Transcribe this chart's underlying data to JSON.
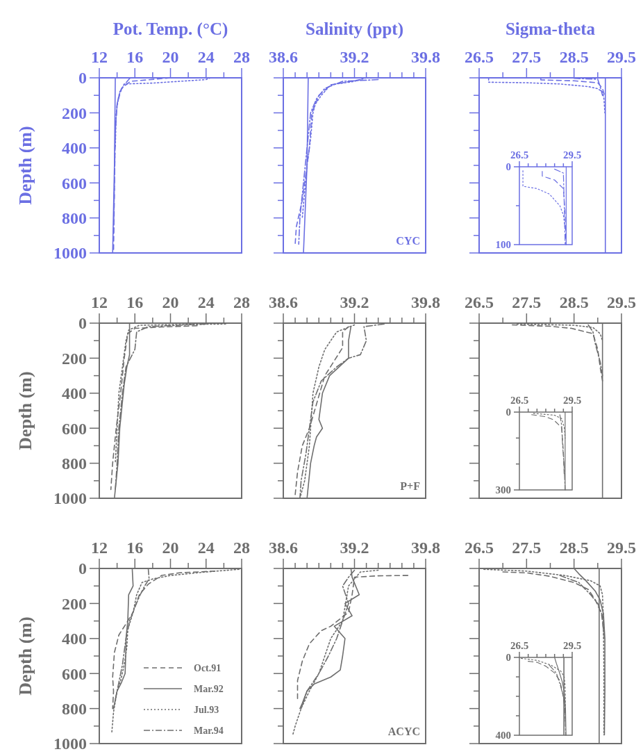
{
  "chart_data": [
    {
      "type": "line",
      "title": "Pot. Temp. (°C)",
      "ylabel": "Depth (m)",
      "xlim": [
        12,
        28
      ],
      "ylim": [
        1000,
        0
      ],
      "xticks": [
        12,
        {
          "value": 14,
          "label": null
        },
        16,
        {
          "value": 18,
          "label": null
        },
        20,
        {
          "value": 22,
          "label": null
        },
        24,
        {
          "value": 26,
          "label": null
        },
        28
      ],
      "yticks": [
        0,
        {
          "value": 100,
          "label": null
        },
        200,
        {
          "value": 300,
          "label": null
        },
        400,
        {
          "value": 500,
          "label": null
        },
        600,
        {
          "value": 700,
          "label": null
        },
        800,
        {
          "value": 900,
          "label": null
        },
        1000
      ],
      "series": [
        {
          "color": "#6b6fe3",
          "line_style": "dashed",
          "x": [
            20.0,
            15.5,
            14.5,
            14.0,
            13.8,
            13.6
          ],
          "values": [
            0,
            20,
            60,
            150,
            300,
            1000
          ]
        },
        {
          "color": "#6b6fe3",
          "line_style": "solid",
          "x": [
            13.8,
            13.7,
            13.5
          ],
          "values": [
            0,
            500,
            1000
          ]
        },
        {
          "color": "#6b6fe3",
          "line_style": "dotted",
          "x": [
            24.5,
            24.0,
            18.0,
            14.8,
            14.2,
            13.9,
            13.8
          ],
          "values": [
            0,
            10,
            30,
            35,
            100,
            200,
            400
          ]
        },
        {
          "color": "#6b6fe3",
          "line_style": "dashdot",
          "x": [
            15.5,
            15.3,
            14.8,
            14.3,
            14.0,
            13.8,
            13.6
          ],
          "values": [
            0,
            10,
            40,
            80,
            150,
            300,
            900
          ]
        }
      ]
    },
    {
      "type": "line",
      "title": "Salinity (ppt)",
      "tick_labels": "x",
      "xlim": [
        38.6,
        39.8
      ],
      "ylim": [
        1000,
        0
      ],
      "xticks": [
        38.6,
        {
          "value": 38.7,
          "label": null
        },
        {
          "value": 38.8,
          "label": null
        },
        {
          "value": 38.9,
          "label": null
        },
        {
          "value": 39.0,
          "label": null
        },
        {
          "value": 39.1,
          "label": null
        },
        39.2,
        {
          "value": 39.3,
          "label": null
        },
        {
          "value": 39.4,
          "label": null
        },
        {
          "value": 39.5,
          "label": null
        },
        {
          "value": 39.6,
          "label": null
        },
        {
          "value": 39.7,
          "label": null
        },
        39.8
      ],
      "yticks": [
        {
          "value": 0,
          "label": null
        },
        {
          "value": 100,
          "label": null
        },
        {
          "value": 200,
          "label": null
        },
        {
          "value": 300,
          "label": null
        },
        {
          "value": 400,
          "label": null
        },
        {
          "value": 500,
          "label": null
        },
        {
          "value": 600,
          "label": null
        },
        {
          "value": 700,
          "label": null
        },
        {
          "value": 800,
          "label": null
        },
        {
          "value": 900,
          "label": null
        },
        {
          "value": 1000,
          "label": null
        }
      ],
      "annotations": [
        "CYC"
      ],
      "series": [
        {
          "color": "#6b6fe3",
          "line_style": "dashed",
          "x": [
            39.25,
            39.0,
            38.9,
            38.84,
            38.82,
            38.76,
            38.71,
            38.7
          ],
          "values": [
            10,
            40,
            100,
            200,
            400,
            700,
            850,
            950
          ]
        },
        {
          "color": "#6b6fe3",
          "line_style": "solid",
          "x": [
            38.81,
            38.8,
            38.77
          ],
          "values": [
            0,
            500,
            1000
          ]
        },
        {
          "color": "#6b6fe3",
          "line_style": "dotted",
          "x": [
            39.3,
            39.2,
            39.0,
            38.92,
            38.87,
            38.85,
            38.83,
            38.8,
            38.76
          ],
          "values": [
            0,
            20,
            40,
            100,
            150,
            200,
            350,
            500,
            800
          ]
        },
        {
          "color": "#6b6fe3",
          "line_style": "dashdot",
          "x": [
            39.4,
            39.1,
            38.95,
            38.88,
            38.83,
            38.8,
            38.74,
            38.73
          ],
          "values": [
            10,
            20,
            60,
            120,
            200,
            400,
            800,
            950
          ]
        }
      ]
    },
    {
      "type": "line",
      "title": "Sigma-theta",
      "tick_labels": "x",
      "xlim": [
        26.5,
        29.5
      ],
      "ylim": [
        1000,
        0
      ],
      "xticks": [
        26.5,
        {
          "value": 27,
          "label": null
        },
        27.5,
        {
          "value": 28,
          "label": null
        },
        28.5,
        {
          "value": 29,
          "label": null
        },
        29.5
      ],
      "yticks": [
        {
          "value": 0,
          "label": null
        },
        {
          "value": 100,
          "label": null
        },
        {
          "value": 200,
          "label": null
        },
        {
          "value": 300,
          "label": null
        },
        {
          "value": 400,
          "label": null
        },
        {
          "value": 500,
          "label": null
        },
        {
          "value": 600,
          "label": null
        },
        {
          "value": 700,
          "label": null
        },
        {
          "value": 800,
          "label": null
        },
        {
          "value": 900,
          "label": null
        },
        {
          "value": 1000,
          "label": null
        }
      ],
      "series": [
        {
          "color": "#6b6fe3",
          "line_style": "dashed",
          "x": [
            27.8,
            27.8,
            28.5,
            29.0,
            29.1,
            29.14
          ],
          "values": [
            6,
            12,
            17,
            28,
            60,
            100
          ]
        },
        {
          "color": "#6b6fe3",
          "line_style": "solid",
          "x": [
            29.16,
            29.16
          ],
          "values": [
            0,
            1000
          ]
        },
        {
          "color": "#6b6fe3",
          "line_style": "dotted",
          "x": [
            26.7,
            26.7,
            27.5,
            28.2,
            28.8,
            29.0,
            29.1,
            29.13,
            29.15
          ],
          "values": [
            5,
            25,
            28,
            35,
            50,
            62,
            80,
            120,
            200
          ]
        },
        {
          "color": "#6b6fe3",
          "line_style": "dashdot",
          "x": [
            28.5,
            29.0,
            29.05,
            29.1
          ],
          "values": [
            3,
            8,
            50,
            100
          ]
        }
      ]
    },
    {
      "type": "line",
      "xlim": [
        26.5,
        29.5
      ],
      "ylim": [
        100,
        0
      ],
      "xticks": [
        26.5,
        {
          "value": 27,
          "label": null
        },
        {
          "value": 27.5,
          "label": null
        },
        {
          "value": 28,
          "label": null
        },
        {
          "value": 28.5,
          "label": null
        },
        {
          "value": 29,
          "label": null
        },
        29.5
      ],
      "yticks": [
        0,
        {
          "value": 50,
          "label": null
        },
        100
      ],
      "series": [
        {
          "color": "#6b6fe3",
          "line_style": "dashed",
          "x": [
            27.8,
            27.8,
            28.5,
            29.0,
            29.1,
            29.14
          ],
          "values": [
            6,
            12,
            17,
            28,
            60,
            100
          ]
        },
        {
          "color": "#6b6fe3",
          "line_style": "solid",
          "x": [
            29.16,
            29.16
          ],
          "values": [
            0,
            100
          ]
        },
        {
          "color": "#6b6fe3",
          "line_style": "dotted",
          "x": [
            26.7,
            26.7,
            27.5,
            28.2,
            28.8,
            29.0,
            29.1
          ],
          "values": [
            5,
            25,
            28,
            35,
            50,
            62,
            80
          ]
        },
        {
          "color": "#6b6fe3",
          "line_style": "dashdot",
          "x": [
            28.5,
            29.0,
            29.05,
            29.1
          ],
          "values": [
            3,
            8,
            50,
            100
          ]
        }
      ]
    },
    {
      "type": "line",
      "ylabel": "Depth (m)",
      "xlim": [
        12,
        28
      ],
      "ylim": [
        1000,
        0
      ],
      "xticks": [
        12,
        {
          "value": 14,
          "label": null
        },
        16,
        {
          "value": 18,
          "label": null
        },
        20,
        {
          "value": 22,
          "label": null
        },
        24,
        {
          "value": 26,
          "label": null
        },
        28
      ],
      "yticks": [
        0,
        {
          "value": 100,
          "label": null
        },
        200,
        {
          "value": 300,
          "label": null
        },
        400,
        {
          "value": 500,
          "label": null
        },
        600,
        {
          "value": 700,
          "label": null
        },
        800,
        {
          "value": 900,
          "label": null
        },
        1000
      ],
      "series": [
        {
          "color": "#6e6e6e",
          "line_style": "dashed",
          "x": [
            23,
            19,
            16,
            15.2,
            14.8,
            14.4,
            13.9,
            13.5,
            13.3
          ],
          "values": [
            15,
            22,
            30,
            60,
            200,
            400,
            600,
            800,
            950
          ]
        },
        {
          "color": "#6e6e6e",
          "line_style": "solid",
          "x": [
            15.4,
            15.4,
            15.1,
            14.8,
            14.5,
            14.3,
            14.1,
            13.7
          ],
          "values": [
            0,
            180,
            250,
            350,
            500,
            600,
            800,
            1000
          ]
        },
        {
          "color": "#6e6e6e",
          "line_style": "dotted",
          "x": [
            26.2,
            21,
            16.5,
            15.3,
            15.0,
            14.6,
            14.2,
            14.0,
            13.8
          ],
          "values": [
            5,
            8,
            12,
            40,
            100,
            250,
            400,
            600,
            800
          ]
        },
        {
          "color": "#6e6e6e",
          "line_style": "dashdot",
          "x": [
            24,
            17.5,
            16.2,
            16.0,
            15.5,
            15.0,
            14.6,
            14.2,
            14.0,
            13.8
          ],
          "values": [
            5,
            20,
            50,
            150,
            200,
            250,
            400,
            600,
            800,
            950
          ]
        }
      ]
    },
    {
      "type": "line",
      "tick_labels": "x",
      "xlim": [
        38.6,
        39.8
      ],
      "ylim": [
        1000,
        0
      ],
      "xticks": [
        38.6,
        {
          "value": 38.7,
          "label": null
        },
        {
          "value": 38.8,
          "label": null
        },
        {
          "value": 38.9,
          "label": null
        },
        {
          "value": 39.0,
          "label": null
        },
        {
          "value": 39.1,
          "label": null
        },
        39.2,
        {
          "value": 39.3,
          "label": null
        },
        {
          "value": 39.4,
          "label": null
        },
        {
          "value": 39.5,
          "label": null
        },
        {
          "value": 39.6,
          "label": null
        },
        {
          "value": 39.7,
          "label": null
        },
        39.8
      ],
      "yticks": [
        {
          "value": 0,
          "label": null
        },
        {
          "value": 100,
          "label": null
        },
        {
          "value": 200,
          "label": null
        },
        {
          "value": 300,
          "label": null
        },
        {
          "value": 400,
          "label": null
        },
        {
          "value": 500,
          "label": null
        },
        {
          "value": 600,
          "label": null
        },
        {
          "value": 700,
          "label": null
        },
        {
          "value": 800,
          "label": null
        },
        {
          "value": 900,
          "label": null
        },
        {
          "value": 1000,
          "label": null
        }
      ],
      "annotations": [
        "P+F"
      ],
      "series": [
        {
          "color": "#6e6e6e",
          "line_style": "dashed",
          "x": [
            39.15,
            39.1,
            39.1,
            38.95,
            38.82,
            38.76,
            38.72,
            38.7
          ],
          "values": [
            20,
            50,
            140,
            300,
            600,
            700,
            850,
            980
          ]
        },
        {
          "color": "#6e6e6e",
          "line_style": "solid",
          "x": [
            39.17,
            39.15,
            39.15,
            38.99,
            38.93,
            38.91,
            38.9,
            38.93,
            38.88,
            38.86,
            38.83,
            38.8
          ],
          "values": [
            20,
            100,
            200,
            300,
            400,
            500,
            550,
            600,
            650,
            700,
            800,
            1000
          ]
        },
        {
          "color": "#6e6e6e",
          "line_style": "dotted",
          "x": [
            39.2,
            39.05,
            38.95,
            38.9,
            38.85,
            38.82,
            38.78,
            38.74
          ],
          "values": [
            10,
            50,
            150,
            250,
            400,
            700,
            900,
            1000
          ]
        },
        {
          "color": "#6e6e6e",
          "line_style": "dashdot",
          "x": [
            39.45,
            39.28,
            39.3,
            39.25,
            39.15,
            39.05,
            38.92,
            38.85,
            38.82,
            38.79,
            38.75,
            38.74
          ],
          "values": [
            5,
            20,
            100,
            180,
            200,
            250,
            330,
            450,
            600,
            750,
            900,
            1000
          ]
        }
      ]
    },
    {
      "type": "line",
      "tick_labels": "x",
      "xlim": [
        26.5,
        29.5
      ],
      "ylim": [
        1000,
        0
      ],
      "xticks": [
        26.5,
        {
          "value": 27,
          "label": null
        },
        27.5,
        {
          "value": 28,
          "label": null
        },
        28.5,
        {
          "value": 29,
          "label": null
        },
        29.5
      ],
      "yticks": [
        {
          "value": 0,
          "label": null
        },
        {
          "value": 100,
          "label": null
        },
        {
          "value": 200,
          "label": null
        },
        {
          "value": 300,
          "label": null
        },
        {
          "value": 400,
          "label": null
        },
        {
          "value": 500,
          "label": null
        },
        {
          "value": 600,
          "label": null
        },
        {
          "value": 700,
          "label": null
        },
        {
          "value": 800,
          "label": null
        },
        {
          "value": 900,
          "label": null
        },
        {
          "value": 1000,
          "label": null
        }
      ],
      "series": [
        {
          "color": "#6e6e6e",
          "line_style": "dashed",
          "x": [
            27.2,
            28.0,
            28.45,
            28.9,
            29.0,
            29.05,
            29.1
          ],
          "values": [
            10,
            18,
            30,
            60,
            150,
            250,
            330
          ]
        },
        {
          "color": "#6e6e6e",
          "line_style": "solid",
          "x": [
            29.1,
            29.1
          ],
          "values": [
            0,
            1000
          ]
        },
        {
          "color": "#6e6e6e",
          "line_style": "dotted",
          "x": [
            27.3,
            28.5,
            28.9,
            29.05,
            29.1
          ],
          "values": [
            5,
            12,
            25,
            60,
            100
          ]
        },
        {
          "color": "#6e6e6e",
          "line_style": "dashdot",
          "x": [
            28.8,
            28.9,
            28.95,
            29.05,
            29.1
          ],
          "values": [
            10,
            50,
            120,
            220,
            300
          ]
        }
      ]
    },
    {
      "type": "line",
      "xlim": [
        26.5,
        29.5
      ],
      "ylim": [
        300,
        0
      ],
      "xticks": [
        26.5,
        {
          "value": 27,
          "label": null
        },
        {
          "value": 27.5,
          "label": null
        },
        {
          "value": 28,
          "label": null
        },
        {
          "value": 28.5,
          "label": null
        },
        {
          "value": 29,
          "label": null
        },
        29.5
      ],
      "yticks": [
        0,
        {
          "value": 100,
          "label": null
        },
        {
          "value": 200,
          "label": null
        },
        300
      ],
      "series": [
        {
          "color": "#6e6e6e",
          "line_style": "dashed",
          "x": [
            27.2,
            28.0,
            28.45,
            28.9,
            29.0,
            29.05
          ],
          "values": [
            10,
            18,
            30,
            60,
            150,
            250
          ]
        },
        {
          "color": "#6e6e6e",
          "line_style": "solid",
          "x": [
            29.1,
            29.1
          ],
          "values": [
            0,
            300
          ]
        },
        {
          "color": "#6e6e6e",
          "line_style": "dotted",
          "x": [
            27.3,
            28.5,
            28.9,
            29.05,
            29.1
          ],
          "values": [
            5,
            12,
            25,
            60,
            100
          ]
        },
        {
          "color": "#6e6e6e",
          "line_style": "dashdot",
          "x": [
            28.8,
            28.9,
            28.95,
            29.05,
            29.1
          ],
          "values": [
            10,
            50,
            120,
            220,
            300
          ]
        }
      ]
    },
    {
      "type": "line",
      "ylabel": "Depth (m)",
      "legend": "bottom right",
      "xlim": [
        12,
        28
      ],
      "ylim": [
        1000,
        0
      ],
      "xticks": [
        12,
        {
          "value": 14,
          "label": null
        },
        16,
        {
          "value": 18,
          "label": null
        },
        20,
        {
          "value": 22,
          "label": null
        },
        24,
        {
          "value": 26,
          "label": null
        },
        28
      ],
      "yticks": [
        0,
        {
          "value": 100,
          "label": null
        },
        200,
        {
          "value": 300,
          "label": null
        },
        400,
        {
          "value": 500,
          "label": null
        },
        600,
        {
          "value": 700,
          "label": null
        },
        800,
        {
          "value": 900,
          "label": null
        },
        1000
      ],
      "series": [
        {
          "name": "Oct.91",
          "color": "#6e6e6e",
          "line_style": "dashed",
          "x": [
            25,
            21,
            19,
            17.5,
            16.5,
            15.8,
            15.2,
            14.2,
            13.7,
            13.5,
            13.6,
            13.5
          ],
          "values": [
            15,
            25,
            40,
            90,
            150,
            250,
            300,
            380,
            480,
            620,
            700,
            800
          ]
        },
        {
          "name": "Mar.92",
          "color": "#6e6e6e",
          "line_style": "solid",
          "x": [
            15.7,
            15.8,
            15.3,
            15.2,
            15.0,
            15.0,
            14.9,
            14.5,
            14.0,
            13.6
          ],
          "values": [
            0,
            100,
            150,
            300,
            400,
            450,
            600,
            650,
            700,
            800
          ]
        },
        {
          "name": "Jul.93",
          "color": "#6e6e6e",
          "line_style": "dotted",
          "x": [
            27.7,
            24,
            20,
            18,
            16.8,
            16.2,
            15.8,
            15.2,
            15.1,
            14.8,
            14.4,
            14.0,
            13.6,
            13.4
          ],
          "values": [
            5,
            20,
            40,
            60,
            80,
            150,
            250,
            350,
            450,
            550,
            640,
            700,
            820,
            940
          ]
        },
        {
          "name": "Mar.94",
          "color": "#6e6e6e",
          "line_style": "dashdot",
          "x": [
            17.5,
            17.6,
            17.1,
            16.6,
            16.0,
            15.4,
            15.0,
            14.6,
            14.2,
            13.8
          ],
          "values": [
            0,
            60,
            100,
            150,
            220,
            300,
            400,
            550,
            650,
            750
          ]
        }
      ]
    },
    {
      "type": "line",
      "tick_labels": "x",
      "xlim": [
        38.6,
        39.8
      ],
      "ylim": [
        1000,
        0
      ],
      "xticks": [
        38.6,
        {
          "value": 38.7,
          "label": null
        },
        {
          "value": 38.8,
          "label": null
        },
        {
          "value": 38.9,
          "label": null
        },
        {
          "value": 39.0,
          "label": null
        },
        {
          "value": 39.1,
          "label": null
        },
        39.2,
        {
          "value": 39.3,
          "label": null
        },
        {
          "value": 39.4,
          "label": null
        },
        {
          "value": 39.5,
          "label": null
        },
        {
          "value": 39.6,
          "label": null
        },
        {
          "value": 39.7,
          "label": null
        },
        39.8
      ],
      "yticks": [
        {
          "value": 0,
          "label": null
        },
        {
          "value": 100,
          "label": null
        },
        {
          "value": 200,
          "label": null
        },
        {
          "value": 300,
          "label": null
        },
        {
          "value": 400,
          "label": null
        },
        {
          "value": 500,
          "label": null
        },
        {
          "value": 600,
          "label": null
        },
        {
          "value": 700,
          "label": null
        },
        {
          "value": 800,
          "label": null
        },
        {
          "value": 900,
          "label": null
        },
        {
          "value": 1000,
          "label": null
        }
      ],
      "annotations": [
        "ACYC"
      ],
      "series": [
        {
          "color": "#6e6e6e",
          "line_style": "dashed",
          "x": [
            39.65,
            39.4,
            39.2,
            39.18,
            39.15,
            39.0,
            38.92,
            38.82,
            38.76,
            38.72,
            38.72
          ],
          "values": [
            40,
            42,
            50,
            150,
            250,
            330,
            355,
            430,
            530,
            640,
            750
          ]
        },
        {
          "color": "#6e6e6e",
          "line_style": "solid",
          "x": [
            39.17,
            39.18,
            39.24,
            39.12,
            39.18,
            39.03,
            39.12,
            39.1,
            39.08,
            39.0,
            38.86,
            38.8,
            38.76,
            38.74
          ],
          "values": [
            0,
            50,
            150,
            200,
            270,
            330,
            400,
            500,
            580,
            620,
            660,
            700,
            770,
            800
          ]
        },
        {
          "color": "#6e6e6e",
          "line_style": "dotted",
          "x": [
            39.4,
            39.25,
            39.15,
            39.1,
            39.0,
            38.95,
            38.9,
            38.82,
            38.75,
            38.7,
            38.68
          ],
          "values": [
            10,
            20,
            100,
            300,
            400,
            500,
            600,
            700,
            800,
            900,
            950
          ]
        },
        {
          "color": "#6e6e6e",
          "line_style": "dashdot",
          "x": [
            39.2,
            39.15,
            39.1,
            39.15,
            39.1,
            39.05,
            38.98,
            38.9,
            38.8,
            38.75
          ],
          "values": [
            10,
            50,
            100,
            200,
            300,
            400,
            500,
            600,
            700,
            800
          ]
        }
      ]
    },
    {
      "type": "line",
      "tick_labels": "x",
      "xlim": [
        26.5,
        29.5
      ],
      "ylim": [
        1000,
        0
      ],
      "xticks": [
        26.5,
        {
          "value": 27,
          "label": null
        },
        27.5,
        {
          "value": 28,
          "label": null
        },
        28.5,
        {
          "value": 29,
          "label": null
        },
        29.5
      ],
      "yticks": [
        {
          "value": 0,
          "label": null
        },
        {
          "value": 100,
          "label": null
        },
        {
          "value": 200,
          "label": null
        },
        {
          "value": 300,
          "label": null
        },
        {
          "value": 400,
          "label": null
        },
        {
          "value": 500,
          "label": null
        },
        {
          "value": 600,
          "label": null
        },
        {
          "value": 700,
          "label": null
        },
        {
          "value": 800,
          "label": null
        },
        {
          "value": 900,
          "label": null
        },
        {
          "value": 1000,
          "label": null
        }
      ],
      "ref_lines": [
        {
          "axis": "x",
          "value": 29.03
        }
      ],
      "series": [
        {
          "color": "#6e6e6e",
          "line_style": "dashed",
          "x": [
            27.0,
            27.5,
            28.0,
            28.5,
            28.8,
            28.95,
            29.08,
            29.12
          ],
          "values": [
            20,
            25,
            45,
            80,
            120,
            180,
            260,
            350
          ]
        },
        {
          "color": "#6e6e6e",
          "line_style": "solid",
          "x": [
            28.5,
            28.6,
            28.75,
            28.95,
            29.05,
            29.12,
            29.15,
            29.15,
            29.14
          ],
          "values": [
            0,
            30,
            70,
            130,
            180,
            260,
            400,
            700,
            950
          ]
        },
        {
          "color": "#6e6e6e",
          "line_style": "dotted",
          "x": [
            26.6,
            27.5,
            28.3,
            28.85,
            29.05,
            29.1,
            29.12,
            29.13,
            29.13
          ],
          "values": [
            5,
            15,
            40,
            70,
            100,
            150,
            300,
            600,
            950
          ]
        },
        {
          "color": "#6e6e6e",
          "line_style": "dashdot",
          "x": [
            28.2,
            28.6,
            28.85,
            29.0,
            29.1,
            29.13
          ],
          "values": [
            40,
            80,
            150,
            200,
            270,
            400
          ]
        }
      ]
    },
    {
      "type": "line",
      "xlim": [
        26.5,
        29.5
      ],
      "ylim": [
        400,
        0
      ],
      "xticks": [
        26.5,
        {
          "value": 27,
          "label": null
        },
        {
          "value": 27.5,
          "label": null
        },
        {
          "value": 28,
          "label": null
        },
        {
          "value": 28.5,
          "label": null
        },
        {
          "value": 29,
          "label": null
        },
        29.5
      ],
      "yticks": [
        0,
        {
          "value": 100,
          "label": null
        },
        {
          "value": 200,
          "label": null
        },
        {
          "value": 300,
          "label": null
        },
        400
      ],
      "ref_lines": [
        {
          "axis": "x",
          "value": 29.03
        }
      ],
      "series": [
        {
          "color": "#6e6e6e",
          "line_style": "dashed",
          "x": [
            27.0,
            27.5,
            28.0,
            28.5,
            28.8,
            28.95,
            29.08,
            29.12
          ],
          "values": [
            20,
            25,
            45,
            80,
            120,
            180,
            260,
            350
          ]
        },
        {
          "color": "#6e6e6e",
          "line_style": "solid",
          "x": [
            28.5,
            28.6,
            28.75,
            28.95,
            29.05,
            29.12,
            29.15
          ],
          "values": [
            0,
            30,
            70,
            130,
            180,
            260,
            400
          ]
        },
        {
          "color": "#6e6e6e",
          "line_style": "dotted",
          "x": [
            26.6,
            27.5,
            28.3,
            28.85,
            29.05,
            29.1,
            29.12
          ],
          "values": [
            5,
            15,
            40,
            70,
            100,
            150,
            300
          ]
        },
        {
          "color": "#6e6e6e",
          "line_style": "dashdot",
          "x": [
            28.2,
            28.6,
            28.85,
            29.0,
            29.1,
            29.13
          ],
          "values": [
            40,
            80,
            150,
            200,
            270,
            400
          ]
        }
      ]
    }
  ]
}
